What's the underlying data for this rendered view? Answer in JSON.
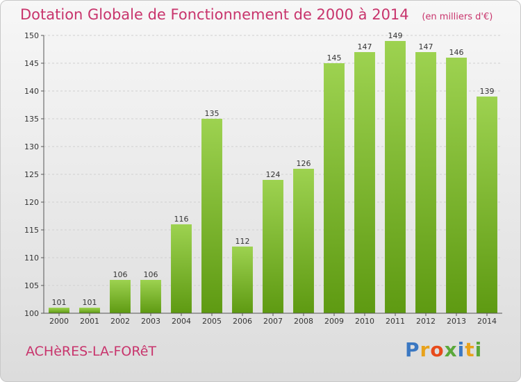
{
  "chart_data": {
    "type": "bar",
    "title": "Dotation Globale de Fonctionnement de 2000 à 2014",
    "unit": "(en milliers d'€)",
    "categories": [
      "2000",
      "2001",
      "2002",
      "2003",
      "2004",
      "2005",
      "2006",
      "2007",
      "2008",
      "2009",
      "2010",
      "2011",
      "2012",
      "2013",
      "2014"
    ],
    "values": [
      101,
      101,
      106,
      106,
      116,
      135,
      112,
      124,
      126,
      145,
      147,
      149,
      147,
      146,
      139
    ],
    "ylim": [
      100,
      150
    ],
    "yticks": [
      100,
      105,
      110,
      115,
      120,
      125,
      130,
      135,
      140,
      145,
      150
    ],
    "grid": true,
    "colors": {
      "bar_light": "#9dd250",
      "bar_dark": "#5e9a12",
      "title": "#c8346c"
    }
  },
  "commune": "ACHèRES-LA-FORêT",
  "logo": {
    "letters": [
      "P",
      "r",
      "o",
      "x",
      "i",
      "t",
      "i"
    ]
  }
}
